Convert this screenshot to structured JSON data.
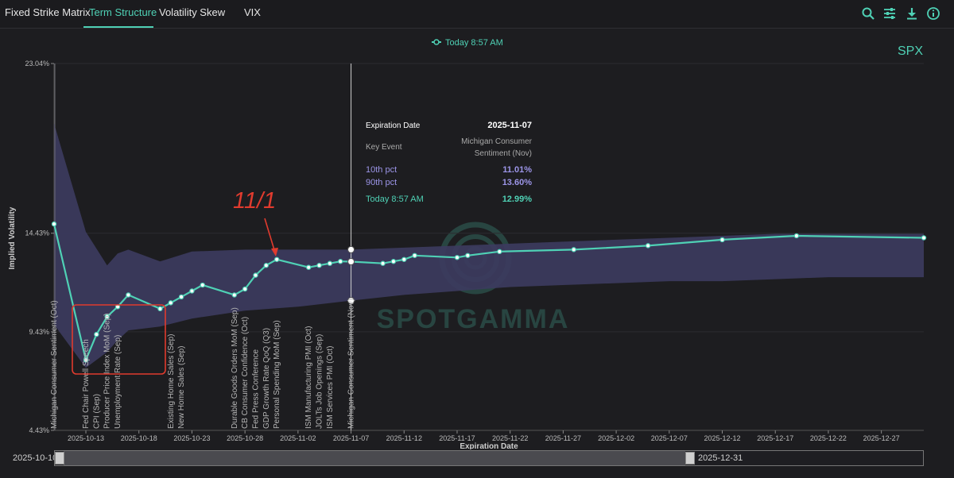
{
  "tabs": [
    {
      "label": "Fixed Strike Matrix"
    },
    {
      "label": "Term Structure"
    },
    {
      "label": "Volatility Skew"
    },
    {
      "label": "VIX"
    }
  ],
  "toolbar_icons": [
    "search-icon",
    "sliders-icon",
    "download-icon",
    "info-icon"
  ],
  "colors": {
    "accent": "#4fd1b5",
    "band": "#3c3b5e",
    "annotation": "#e03b2e",
    "tooltip_pct": "#9c95e8"
  },
  "chart_data": {
    "type": "line",
    "symbol": "SPX",
    "legend": "Today 8:57 AM",
    "xlabel": "Expiration Date",
    "ylabel": "Implied Volatility",
    "y_ticks": [
      "23.04%",
      "14.43%",
      "9.43%",
      "4.43%"
    ],
    "x_ticks": [
      "2025-10-13",
      "2025-10-18",
      "2025-10-23",
      "2025-10-28",
      "2025-11-02",
      "2025-11-07",
      "2025-11-12",
      "2025-11-17",
      "2025-11-22",
      "2025-11-27",
      "2025-12-02",
      "2025-12-07",
      "2025-12-12",
      "2025-12-17",
      "2025-12-22",
      "2025-12-27"
    ],
    "xlim": [
      "2025-10-10",
      "2025-12-31"
    ],
    "series": [
      {
        "name": "Today 8:57 AM",
        "x": [
          "2025-10-10",
          "2025-10-13",
          "2025-10-14",
          "2025-10-15",
          "2025-10-16",
          "2025-10-17",
          "2025-10-20",
          "2025-10-21",
          "2025-10-22",
          "2025-10-23",
          "2025-10-24",
          "2025-10-27",
          "2025-10-28",
          "2025-10-29",
          "2025-10-30",
          "2025-10-31",
          "2025-11-03",
          "2025-11-04",
          "2025-11-05",
          "2025-11-06",
          "2025-11-07",
          "2025-11-10",
          "2025-11-11",
          "2025-11-12",
          "2025-11-13",
          "2025-11-17",
          "2025-11-18",
          "2025-11-21",
          "2025-11-28",
          "2025-12-05",
          "2025-12-12",
          "2025-12-19",
          "2025-12-31"
        ],
        "y": [
          14.9,
          8.0,
          9.3,
          10.2,
          10.7,
          11.3,
          10.6,
          10.9,
          11.2,
          11.5,
          11.8,
          11.3,
          11.6,
          12.3,
          12.8,
          13.1,
          12.7,
          12.8,
          12.9,
          13.0,
          12.99,
          12.9,
          13.0,
          13.1,
          13.3,
          13.2,
          13.3,
          13.5,
          13.6,
          13.8,
          14.1,
          14.3,
          14.2
        ]
      }
    ],
    "band": {
      "x": [
        "2025-10-10",
        "2025-10-13",
        "2025-10-15",
        "2025-10-16",
        "2025-10-17",
        "2025-10-20",
        "2025-10-23",
        "2025-10-28",
        "2025-11-02",
        "2025-11-07",
        "2025-11-12",
        "2025-11-17",
        "2025-11-22",
        "2025-11-27",
        "2025-12-02",
        "2025-12-07",
        "2025-12-12",
        "2025-12-17",
        "2025-12-22",
        "2025-12-31"
      ],
      "lower": [
        9.8,
        7.6,
        8.4,
        9.0,
        9.5,
        9.7,
        10.1,
        10.5,
        10.7,
        11.01,
        11.3,
        11.5,
        11.7,
        11.8,
        11.9,
        12.0,
        12.0,
        12.1,
        12.2,
        12.2
      ],
      "upper": [
        20.0,
        14.5,
        12.8,
        13.4,
        13.6,
        13.0,
        13.5,
        13.6,
        13.6,
        13.6,
        13.7,
        13.8,
        13.9,
        14.0,
        14.1,
        14.2,
        14.3,
        14.4,
        14.4,
        14.4
      ]
    },
    "events": [
      {
        "x": "2025-10-10",
        "label": "Michigan Consumer Sentiment (Oct)"
      },
      {
        "x": "2025-10-13",
        "label": "Fed Chair Powell Speech"
      },
      {
        "x": "2025-10-14",
        "label": "CPI (Sep)"
      },
      {
        "x": "2025-10-15",
        "label": "Producer Price Index MoM (Sep)"
      },
      {
        "x": "2025-10-16",
        "label": "Unemployment Rate (Sep)"
      },
      {
        "x": "2025-10-21",
        "label": "Existing Home Sales (Sep)"
      },
      {
        "x": "2025-10-22",
        "label": "New Home Sales (Sep)"
      },
      {
        "x": "2025-10-27",
        "label": "Durable Goods Orders MoM (Sep)"
      },
      {
        "x": "2025-10-28",
        "label": "CB Consumer Confidence (Oct)"
      },
      {
        "x": "2025-10-29",
        "label": "Fed Press Conference"
      },
      {
        "x": "2025-10-30",
        "label": "GDP Growth Rate QoQ (Q3)"
      },
      {
        "x": "2025-10-31",
        "label": "Personal Spending MoM (Sep)"
      },
      {
        "x": "2025-11-03",
        "label": "ISM Manufacturing PMI (Oct)"
      },
      {
        "x": "2025-11-04",
        "label": "JOLTs Job Openings (Sep)"
      },
      {
        "x": "2025-11-05",
        "label": "ISM Services PMI (Oct)"
      },
      {
        "x": "2025-11-07",
        "label": "Michigan Consumer Sentiment (Nov)"
      }
    ],
    "cursor_x": "2025-11-07",
    "tooltip": {
      "title_label": "Expiration Date",
      "title_value": "2025-11-07",
      "event_label": "Key Event",
      "event_value_line1": "Michigan Consumer",
      "event_value_line2": "Sentiment (Nov)",
      "p10_label": "10th pct",
      "p10_value": "11.01%",
      "p90_label": "90th pct",
      "p90_value": "13.60%",
      "today_label": "Today 8:57 AM",
      "today_value": "12.99%"
    },
    "annotation": {
      "text": "11/1"
    },
    "watermark": "SPOTGAMMA"
  },
  "range_slider": {
    "start": "2025-10-10",
    "end": "2025-12-31"
  }
}
